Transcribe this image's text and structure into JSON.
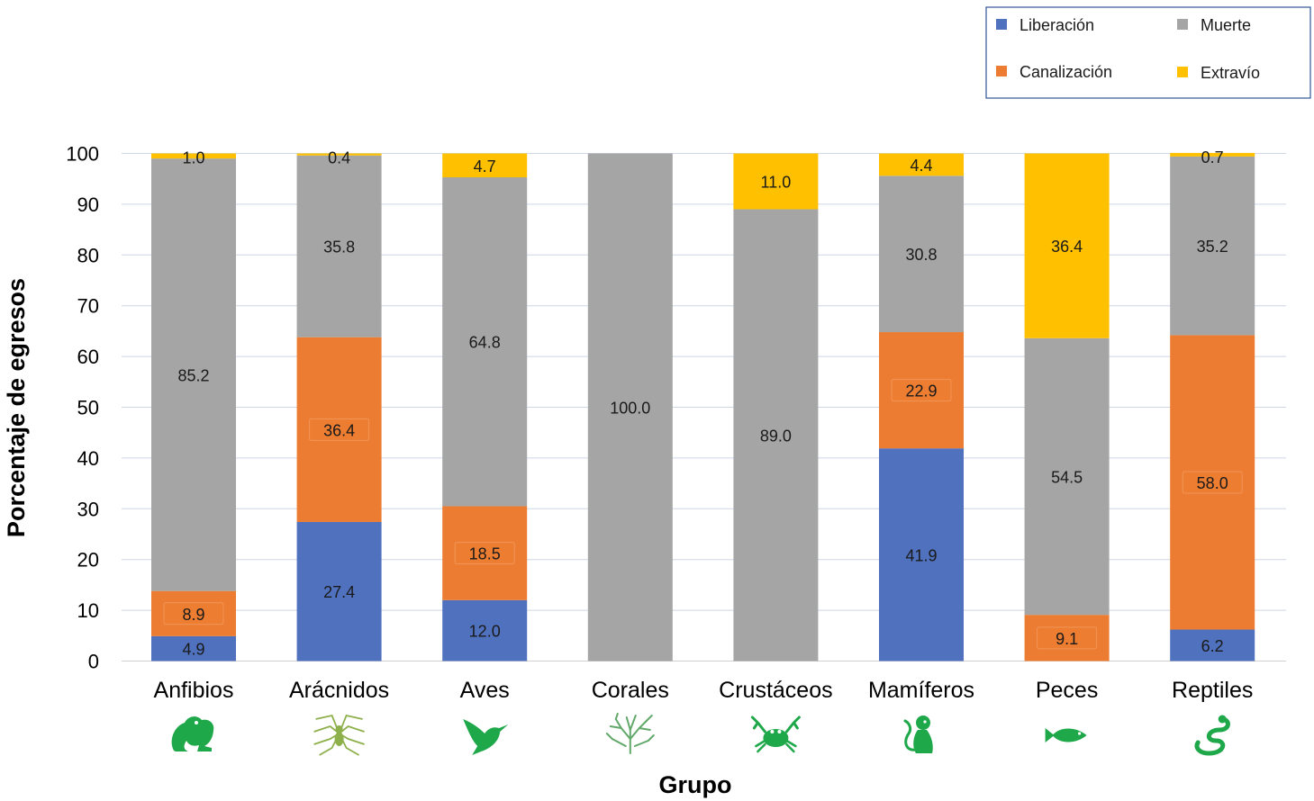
{
  "chart_data": {
    "type": "bar",
    "stacked": true,
    "title": "",
    "xlabel": "Grupo",
    "ylabel": "Porcentaje de egresos",
    "ylim": [
      0,
      100
    ],
    "yticks": [
      0,
      10,
      20,
      30,
      40,
      50,
      60,
      70,
      80,
      90,
      100
    ],
    "grid": true,
    "legend_position": "top-right",
    "categories": [
      "Anfibios",
      "Arácnidos",
      "Aves",
      "Corales",
      "Crustáceos",
      "Mamíferos",
      "Peces",
      "Reptiles"
    ],
    "category_icons": [
      "frog-icon",
      "spider-icon",
      "hummingbird-icon",
      "coral-icon",
      "crab-icon",
      "monkey-icon",
      "fish-icon",
      "snake-icon"
    ],
    "series": [
      {
        "name": "Liberación",
        "color": "#4F71BE",
        "values": [
          4.9,
          27.4,
          12.0,
          0,
          0,
          41.9,
          0,
          6.2
        ],
        "labels": [
          "4.9",
          "27.4",
          "12.0",
          "",
          "",
          "41.9",
          "",
          "6.2"
        ]
      },
      {
        "name": "Canalización",
        "color": "#EB7C31",
        "values": [
          8.9,
          36.4,
          18.5,
          0,
          0,
          22.9,
          9.1,
          58.0
        ],
        "labels": [
          "8.9",
          "36.4",
          "18.5",
          "",
          "",
          "22.9",
          "9.1",
          "58.0"
        ]
      },
      {
        "name": "Muerte",
        "color": "#A5A5A5",
        "values": [
          85.2,
          35.8,
          64.8,
          100.0,
          89.0,
          30.8,
          54.5,
          35.2
        ],
        "labels": [
          "85.2",
          "35.8",
          "64.8",
          "100.0",
          "89.0",
          "30.8",
          "54.5",
          "35.2"
        ]
      },
      {
        "name": "Extravío",
        "color": "#FFC000",
        "values": [
          1.0,
          0.4,
          4.7,
          0,
          11.0,
          4.4,
          36.4,
          0.7
        ],
        "labels": [
          "1.0",
          "0.4",
          "4.7",
          "",
          "11.0",
          "4.4",
          "36.4",
          "0.7"
        ]
      }
    ],
    "icon_color": "#1FA84A",
    "spider_icon_color": "#8DB04A"
  }
}
